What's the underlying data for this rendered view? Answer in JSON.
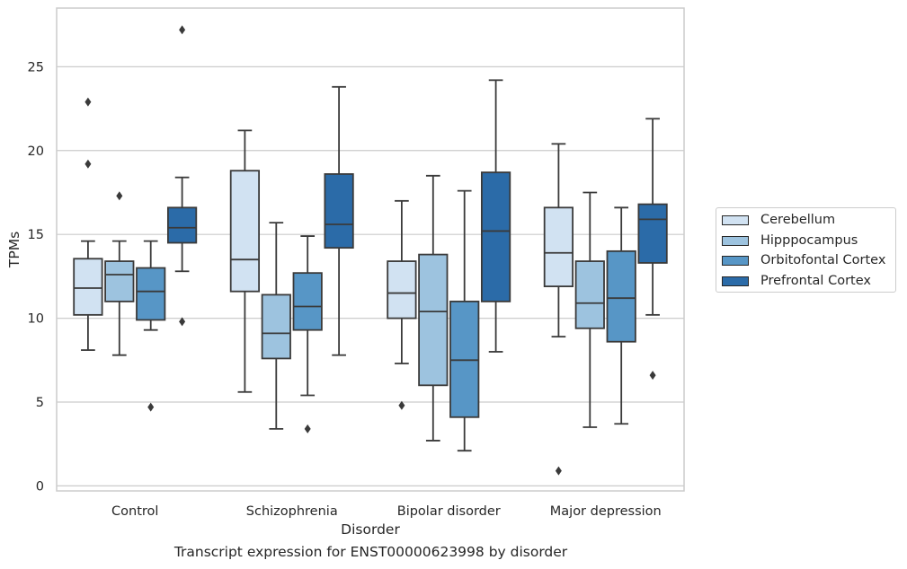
{
  "chart_data": {
    "type": "box",
    "xlabel": "Disorder",
    "ylabel": "TPMs",
    "caption": "Transcript expression for ENST00000623998 by disorder",
    "categories": [
      "Control",
      "Schizophrenia",
      "Bipolar disorder",
      "Major depression"
    ],
    "ylim": [
      -0.3,
      28.5
    ],
    "yticks": [
      "0",
      "5",
      "10",
      "15",
      "20",
      "25"
    ],
    "grid": "horizontal",
    "legend_placement": "right",
    "series": [
      {
        "name": "Cerebellum",
        "color": "#d1e2f2",
        "boxes": [
          {
            "whisker_low": 8.1,
            "q1": 10.2,
            "median": 11.8,
            "q3": 13.55,
            "whisker_high": 14.6,
            "outliers": [
              19.2,
              22.9
            ]
          },
          {
            "whisker_low": 5.6,
            "q1": 11.6,
            "median": 13.5,
            "q3": 18.8,
            "whisker_high": 21.2,
            "outliers": []
          },
          {
            "whisker_low": 7.3,
            "q1": 10.0,
            "median": 11.5,
            "q3": 13.4,
            "whisker_high": 17.0,
            "outliers": [
              4.8
            ]
          },
          {
            "whisker_low": 8.9,
            "q1": 11.9,
            "median": 13.9,
            "q3": 16.6,
            "whisker_high": 20.4,
            "outliers": [
              0.9
            ]
          }
        ]
      },
      {
        "name": "Hipppocampus",
        "color": "#9dc3df",
        "boxes": [
          {
            "whisker_low": 7.8,
            "q1": 11.0,
            "median": 12.6,
            "q3": 13.4,
            "whisker_high": 14.6,
            "outliers": [
              17.3
            ]
          },
          {
            "whisker_low": 3.4,
            "q1": 7.6,
            "median": 9.1,
            "q3": 11.4,
            "whisker_high": 15.7,
            "outliers": []
          },
          {
            "whisker_low": 2.7,
            "q1": 6.0,
            "median": 10.4,
            "q3": 13.8,
            "whisker_high": 18.5,
            "outliers": []
          },
          {
            "whisker_low": 3.5,
            "q1": 9.4,
            "median": 10.9,
            "q3": 13.4,
            "whisker_high": 17.5,
            "outliers": []
          }
        ]
      },
      {
        "name": "Orbitofontal Cortex",
        "color": "#5796c6",
        "boxes": [
          {
            "whisker_low": 9.3,
            "q1": 9.9,
            "median": 11.6,
            "q3": 13.0,
            "whisker_high": 14.6,
            "outliers": [
              4.7
            ]
          },
          {
            "whisker_low": 5.4,
            "q1": 9.3,
            "median": 10.7,
            "q3": 12.7,
            "whisker_high": 14.9,
            "outliers": [
              3.4
            ]
          },
          {
            "whisker_low": 2.1,
            "q1": 4.1,
            "median": 7.5,
            "q3": 11.0,
            "whisker_high": 17.6,
            "outliers": []
          },
          {
            "whisker_low": 3.7,
            "q1": 8.6,
            "median": 11.2,
            "q3": 14.0,
            "whisker_high": 16.6,
            "outliers": []
          }
        ]
      },
      {
        "name": "Prefrontal Cortex",
        "color": "#2b6ba8",
        "boxes": [
          {
            "whisker_low": 12.8,
            "q1": 14.5,
            "median": 15.4,
            "q3": 16.6,
            "whisker_high": 18.4,
            "outliers": [
              9.8,
              27.2
            ]
          },
          {
            "whisker_low": 7.8,
            "q1": 14.2,
            "median": 15.6,
            "q3": 18.6,
            "whisker_high": 23.8,
            "outliers": []
          },
          {
            "whisker_low": 8.0,
            "q1": 11.0,
            "median": 15.2,
            "q3": 18.7,
            "whisker_high": 24.2,
            "outliers": []
          },
          {
            "whisker_low": 10.2,
            "q1": 13.3,
            "median": 15.9,
            "q3": 16.8,
            "whisker_high": 21.9,
            "outliers": [
              6.6
            ]
          }
        ]
      }
    ]
  }
}
